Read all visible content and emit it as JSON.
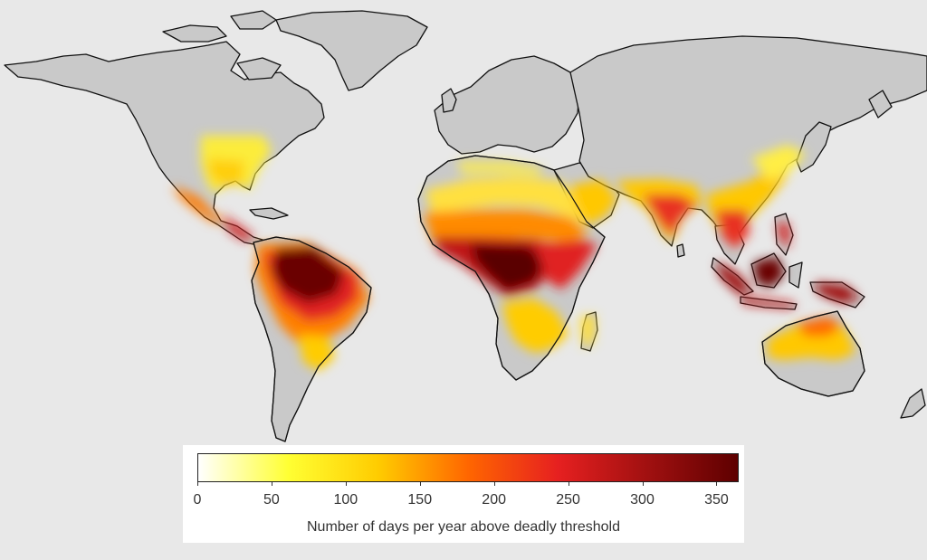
{
  "map": {
    "land_color": "#c9c9c9",
    "ocean_color": "#e8e8e8",
    "coast_color": "#111111"
  },
  "legend": {
    "title": "Number of days per year above deadly threshold",
    "min": 0,
    "max": 365,
    "ticks": [
      "0",
      "50",
      "100",
      "150",
      "200",
      "250",
      "300",
      "350"
    ],
    "color_stops": [
      "#ffffff",
      "#ffff33",
      "#ffcc00",
      "#ff6600",
      "#e62020",
      "#a01010",
      "#5e0000"
    ]
  }
}
